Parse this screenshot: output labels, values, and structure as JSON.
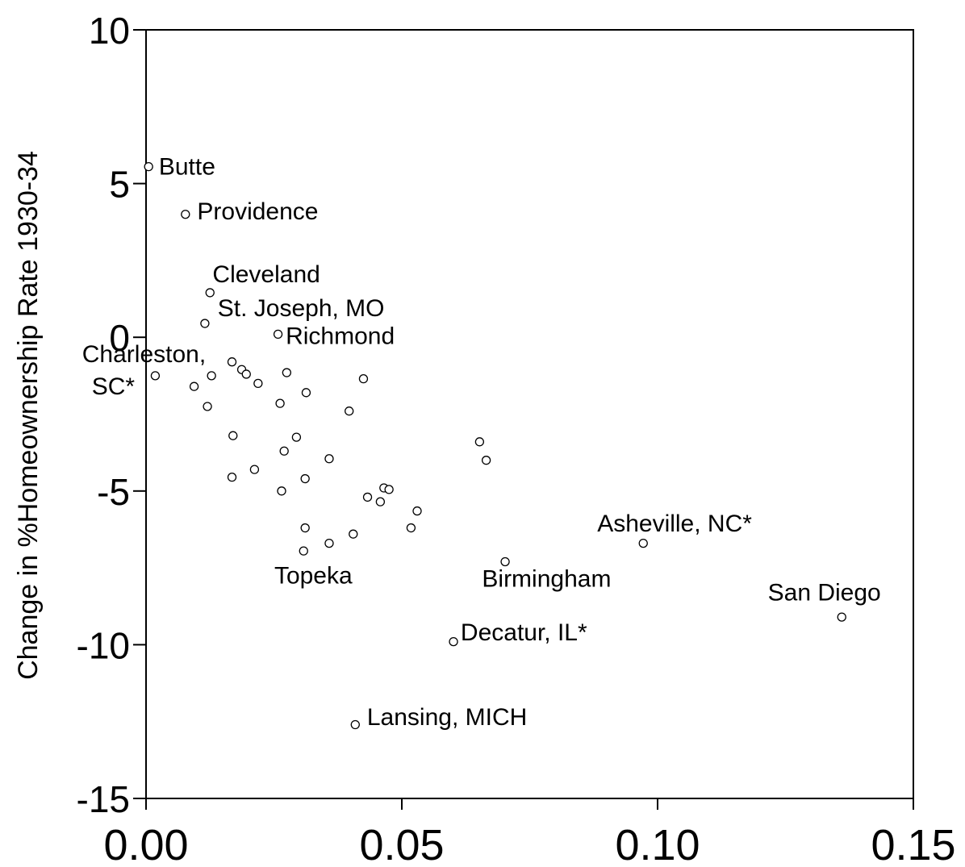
{
  "chart_data": {
    "type": "scatter",
    "title": "",
    "xlabel": "",
    "ylabel": "Change in %Homeownership Rate 1930-34",
    "xlim": [
      0.0,
      0.15
    ],
    "ylim": [
      -15,
      10
    ],
    "x_ticks": [
      {
        "value": 0.0,
        "label": "0.00"
      },
      {
        "value": 0.05,
        "label": "0.05"
      },
      {
        "value": 0.1,
        "label": "0.10"
      },
      {
        "value": 0.15,
        "label": "0.15"
      }
    ],
    "y_ticks": [
      {
        "value": 10,
        "label": "10"
      },
      {
        "value": 5,
        "label": "5"
      },
      {
        "value": 0,
        "label": "0"
      },
      {
        "value": -5,
        "label": "-5"
      },
      {
        "value": -10,
        "label": "-10"
      },
      {
        "value": -15,
        "label": "-15"
      }
    ],
    "grid": false,
    "legend": "none",
    "points": [
      {
        "x": 0.0005,
        "y": 5.55
      },
      {
        "x": 0.0077,
        "y": 4.0
      },
      {
        "x": 0.0125,
        "y": 1.45
      },
      {
        "x": 0.0115,
        "y": 0.45
      },
      {
        "x": 0.0258,
        "y": 0.1
      },
      {
        "x": 0.0018,
        "y": -1.25
      },
      {
        "x": 0.0168,
        "y": -0.8
      },
      {
        "x": 0.0187,
        "y": -1.05
      },
      {
        "x": 0.0196,
        "y": -1.2
      },
      {
        "x": 0.0128,
        "y": -1.25
      },
      {
        "x": 0.0219,
        "y": -1.5
      },
      {
        "x": 0.0275,
        "y": -1.15
      },
      {
        "x": 0.0425,
        "y": -1.35
      },
      {
        "x": 0.0094,
        "y": -1.6
      },
      {
        "x": 0.0313,
        "y": -1.8
      },
      {
        "x": 0.0262,
        "y": -2.15
      },
      {
        "x": 0.012,
        "y": -2.25
      },
      {
        "x": 0.0397,
        "y": -2.4
      },
      {
        "x": 0.017,
        "y": -3.2
      },
      {
        "x": 0.0294,
        "y": -3.25
      },
      {
        "x": 0.027,
        "y": -3.7
      },
      {
        "x": 0.0358,
        "y": -3.95
      },
      {
        "x": 0.0652,
        "y": -3.4
      },
      {
        "x": 0.0665,
        "y": -4.0
      },
      {
        "x": 0.0212,
        "y": -4.3
      },
      {
        "x": 0.0168,
        "y": -4.55
      },
      {
        "x": 0.0311,
        "y": -4.6
      },
      {
        "x": 0.0265,
        "y": -5.0
      },
      {
        "x": 0.0465,
        "y": -4.9
      },
      {
        "x": 0.0475,
        "y": -4.95
      },
      {
        "x": 0.0433,
        "y": -5.2
      },
      {
        "x": 0.0458,
        "y": -5.35
      },
      {
        "x": 0.053,
        "y": -5.65
      },
      {
        "x": 0.0311,
        "y": -6.2
      },
      {
        "x": 0.0405,
        "y": -6.4
      },
      {
        "x": 0.0518,
        "y": -6.2
      },
      {
        "x": 0.0358,
        "y": -6.7
      },
      {
        "x": 0.0308,
        "y": -6.95
      },
      {
        "x": 0.0702,
        "y": -7.3
      },
      {
        "x": 0.0972,
        "y": -6.7
      },
      {
        "x": 0.136,
        "y": -9.1
      },
      {
        "x": 0.0601,
        "y": -9.9
      },
      {
        "x": 0.0409,
        "y": -12.6
      }
    ],
    "annotations": [
      {
        "text": "Butte",
        "x": 0.0025,
        "y": 5.55,
        "anchor": "start"
      },
      {
        "text": "Providence",
        "x": 0.01,
        "y": 4.1,
        "anchor": "start"
      },
      {
        "text": "Cleveland",
        "x": 0.013,
        "y": 2.05,
        "anchor": "start"
      },
      {
        "text": "St. Joseph, MO",
        "x": 0.014,
        "y": 0.95,
        "anchor": "start"
      },
      {
        "text": "Richmond",
        "x": 0.0273,
        "y": 0.05,
        "anchor": "start"
      },
      {
        "text": "Charleston,",
        "x": 0.0117,
        "y": -0.55,
        "anchor": "end"
      },
      {
        "text": "SC*",
        "x": -0.0022,
        "y": -1.6,
        "anchor": "end"
      },
      {
        "text": "Topeka",
        "x": 0.0327,
        "y": -7.75,
        "anchor": "middle"
      },
      {
        "text": "Birmingham",
        "x": 0.0783,
        "y": -7.85,
        "anchor": "middle"
      },
      {
        "text": "Asheville, NC*",
        "x": 0.0882,
        "y": -6.05,
        "anchor": "start"
      },
      {
        "text": "San Diego",
        "x": 0.1326,
        "y": -8.3,
        "anchor": "middle"
      },
      {
        "text": "Decatur, IL*",
        "x": 0.0615,
        "y": -9.6,
        "anchor": "start"
      },
      {
        "text": "Lansing, MICH",
        "x": 0.0432,
        "y": -12.35,
        "anchor": "start"
      }
    ]
  }
}
